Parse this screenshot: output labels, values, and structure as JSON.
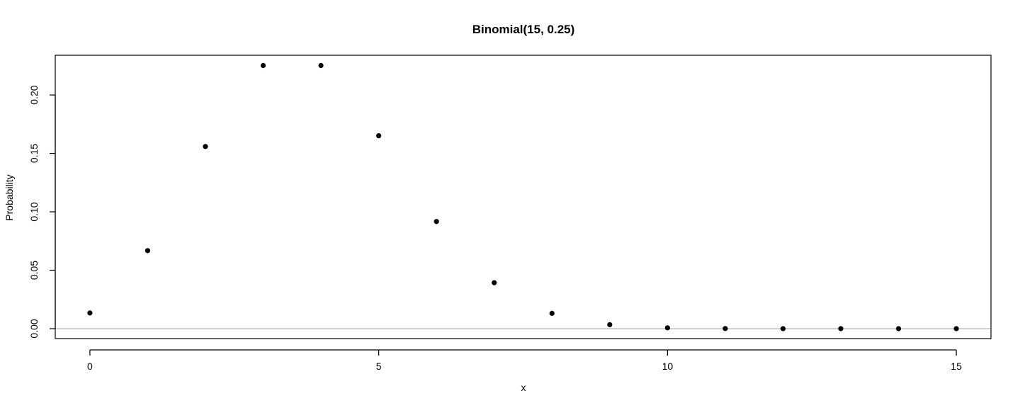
{
  "chart_data": {
    "type": "scatter",
    "title": "Binomial(15, 0.25)",
    "xlabel": "x",
    "ylabel": "Probability",
    "xlim": [
      -0.6,
      15.6
    ],
    "ylim": [
      -0.0085,
      0.234
    ],
    "x_ticks": [
      0,
      5,
      10,
      15
    ],
    "x_tick_labels": [
      "0",
      "5",
      "10",
      "15"
    ],
    "y_ticks": [
      0.0,
      0.05,
      0.1,
      0.15,
      0.2
    ],
    "y_tick_labels": [
      "0.00",
      "0.05",
      "0.10",
      "0.15",
      "0.20"
    ],
    "reference_line_y": 0,
    "grid": false,
    "marker": "filled-circle",
    "colors": {
      "points": "#000000",
      "reference_line": "#b3b3b3",
      "frame": "#000000"
    },
    "x": [
      0,
      1,
      2,
      3,
      4,
      5,
      6,
      7,
      8,
      9,
      10,
      11,
      12,
      13,
      14,
      15
    ],
    "y": [
      0.0134,
      0.0668,
      0.1559,
      0.2252,
      0.2252,
      0.1651,
      0.0917,
      0.0393,
      0.0131,
      0.0034,
      0.0007,
      0.0001,
      0.0,
      0.0,
      0.0,
      0.0
    ]
  }
}
